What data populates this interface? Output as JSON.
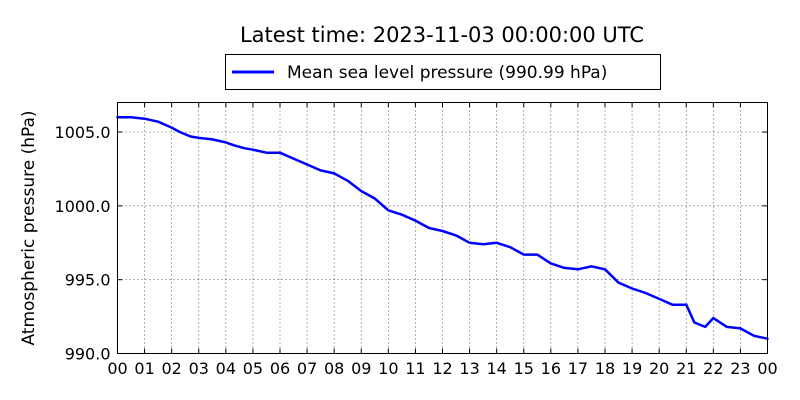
{
  "chart_data": {
    "type": "line",
    "title": "Latest time: 2023-11-03 00:00:00 UTC",
    "ylabel": "Atmospheric pressure (hPa)",
    "xlabel": "",
    "xlim": [
      0,
      24
    ],
    "ylim": [
      990.0,
      1007.0
    ],
    "x_tick_labels": [
      "00",
      "01",
      "02",
      "03",
      "04",
      "05",
      "06",
      "07",
      "08",
      "09",
      "10",
      "11",
      "12",
      "13",
      "14",
      "15",
      "16",
      "17",
      "18",
      "19",
      "20",
      "21",
      "22",
      "23",
      "00"
    ],
    "y_ticks": [
      990.0,
      995.0,
      1000.0,
      1005.0
    ],
    "y_tick_labels": [
      "990.0",
      "995.0",
      "1000.0",
      "1005.0"
    ],
    "grid": true,
    "legend_position": "top-center",
    "series": [
      {
        "name": "Mean sea level pressure (990.99 hPa)",
        "color": "#0000ff",
        "x": [
          0,
          0.5,
          1,
          1.5,
          2,
          2.3,
          2.7,
          3,
          3.5,
          4,
          4.3,
          4.7,
          5,
          5.5,
          6,
          6.5,
          7,
          7.5,
          8,
          8.5,
          9,
          9.5,
          10,
          10.5,
          11,
          11.5,
          12,
          12.5,
          13,
          13.5,
          14,
          14.5,
          15,
          15.5,
          16,
          16.5,
          17,
          17.5,
          18,
          18.5,
          19,
          19.5,
          20,
          20.5,
          21,
          21.3,
          21.7,
          22,
          22.5,
          23,
          23.5,
          24
        ],
        "y": [
          1006.0,
          1006.0,
          1005.9,
          1005.7,
          1005.3,
          1005.0,
          1004.7,
          1004.6,
          1004.5,
          1004.3,
          1004.1,
          1003.9,
          1003.8,
          1003.6,
          1003.6,
          1003.2,
          1002.8,
          1002.4,
          1002.2,
          1001.7,
          1001.0,
          1000.5,
          999.7,
          999.4,
          999.0,
          998.5,
          998.3,
          998.0,
          997.5,
          997.4,
          997.5,
          997.2,
          996.7,
          996.7,
          996.1,
          995.8,
          995.7,
          995.9,
          995.7,
          994.8,
          994.4,
          994.1,
          993.7,
          993.3,
          993.3,
          992.1,
          991.8,
          992.4,
          991.8,
          991.7,
          991.2,
          991.0
        ]
      }
    ]
  }
}
